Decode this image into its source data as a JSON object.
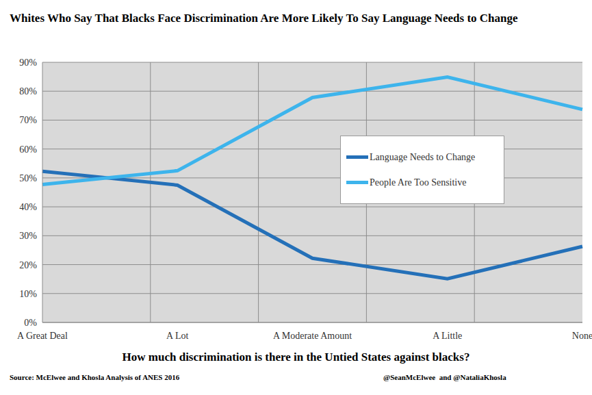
{
  "chart_data": {
    "type": "line",
    "title": "Whites Who Say That Blacks Face Discrimination Are More Likely To Say Language Needs to Change",
    "x_label": "How much discrimination is there in the Untied States against blacks?",
    "source": "Source: McElwee and Khosla Analysis of ANES 2016",
    "credit": "@SeanMcElwee  and @NataliaKhosla",
    "categories": [
      "A Great Deal",
      "A Lot",
      "A Moderate Amount",
      "A Little",
      "None"
    ],
    "series": [
      {
        "name": "Language Needs to Change",
        "color": "#2470b8",
        "values": [
          52.3,
          47.5,
          22.2,
          15.1,
          26.3
        ]
      },
      {
        "name": "People Are Too Sensitive",
        "color": "#3db4ec",
        "values": [
          47.7,
          52.5,
          77.8,
          84.9,
          73.7
        ]
      }
    ],
    "ylim": [
      0,
      90
    ],
    "yticks": [
      {
        "value": 0,
        "label": "0%"
      },
      {
        "value": 10,
        "label": "10%"
      },
      {
        "value": 20,
        "label": "20%"
      },
      {
        "value": 30,
        "label": "30%"
      },
      {
        "value": 40,
        "label": "40%"
      },
      {
        "value": 50,
        "label": "50%"
      },
      {
        "value": 60,
        "label": "60%"
      },
      {
        "value": 70,
        "label": "70%"
      },
      {
        "value": 80,
        "label": "80%"
      },
      {
        "value": 90,
        "label": "90%"
      }
    ],
    "grid": true,
    "legend": "right"
  }
}
